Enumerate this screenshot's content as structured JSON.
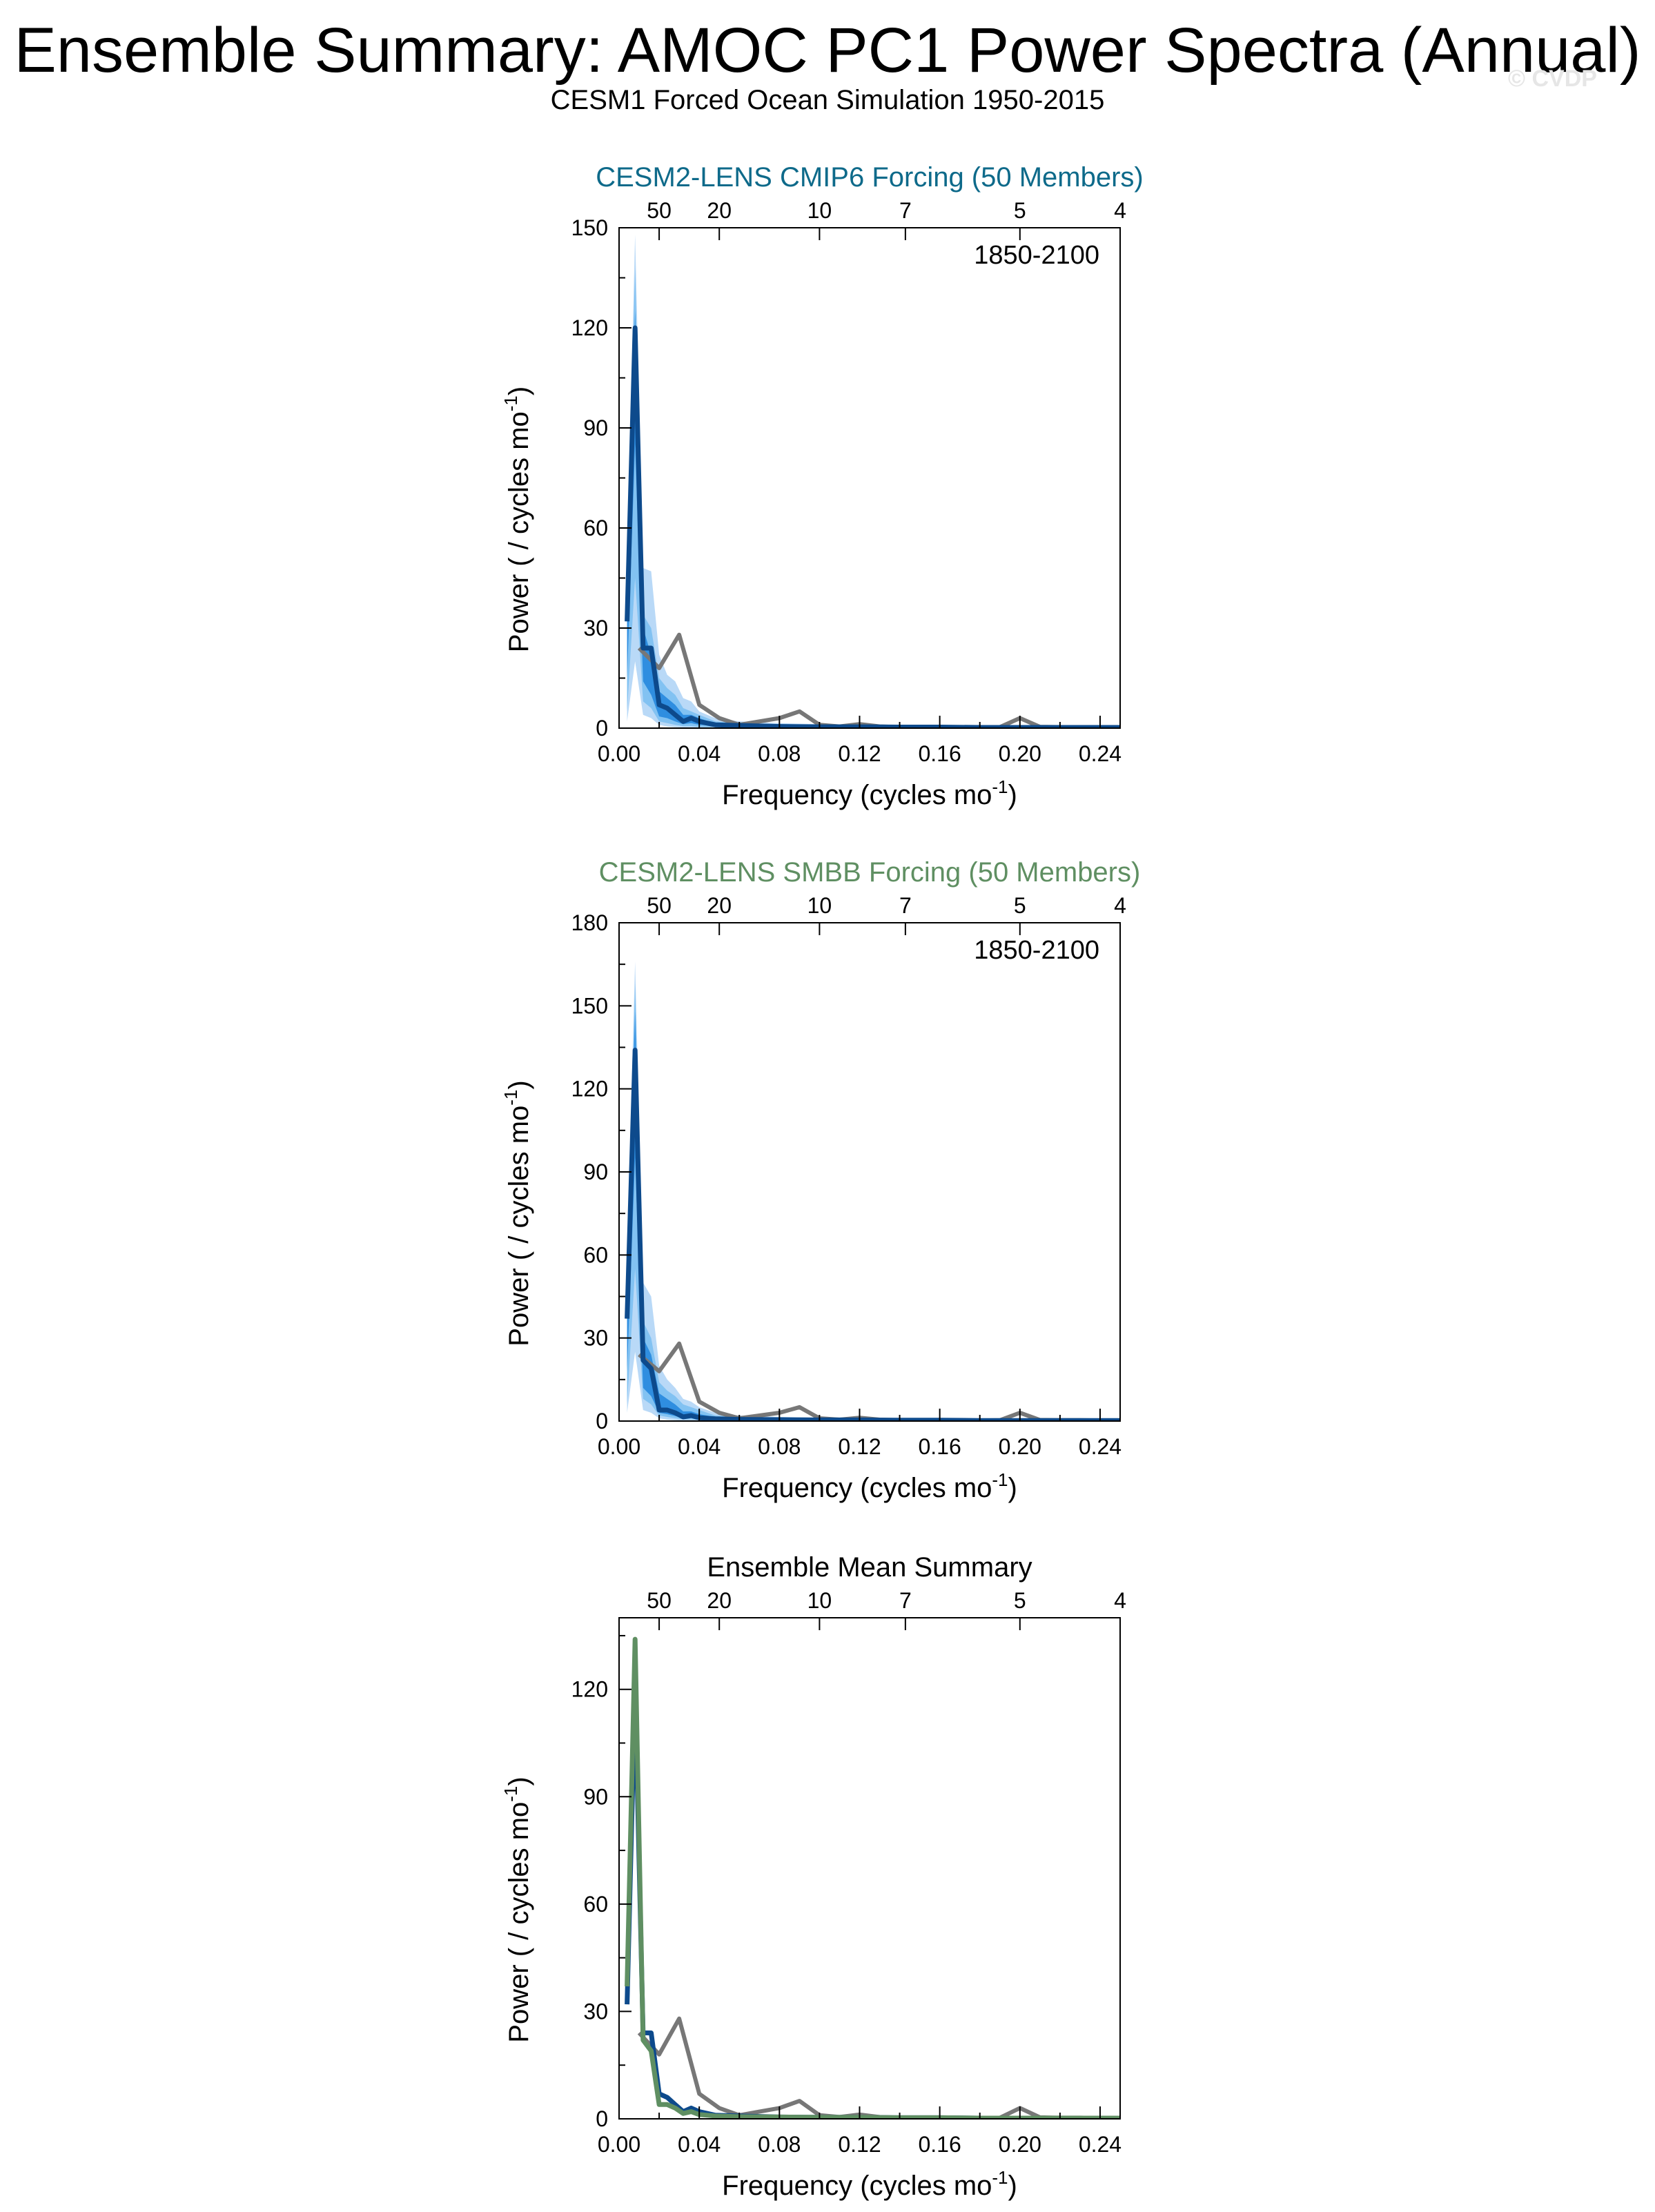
{
  "title": "Ensemble Summary: AMOC PC1 Power Spectra (Annual)",
  "subtitle": "CESM1 Forced Ocean Simulation 1950-2015",
  "watermark": "© CVDP",
  "colors": {
    "observed": "#777777",
    "lens_mean": "#0d4a8c",
    "band_outer": "#b9d9f7",
    "band_mid": "#82c2f2",
    "band_inner": "#2f8ee0",
    "cmip6_title": "#0e6a8a",
    "smbb_title": "#5f8f62",
    "smbb_line": "#5f8f62"
  },
  "chart_data": [
    {
      "type": "line",
      "title": "CESM2-LENS CMIP6 Forcing (50 Members)",
      "title_color": "#0e6a8a",
      "annotation": "1850-2100",
      "xlabel": "Frequency (cycles mo",
      "xlabel_sup": "-1",
      "xlabel_end": ")",
      "ylabel": "Power ( / cycles mo",
      "ylabel_sup": "-1",
      "ylabel_end": ")",
      "xlim": [
        0,
        0.25
      ],
      "ylim": [
        0,
        150
      ],
      "x_ticks": [
        "0.00",
        "0.04",
        "0.08",
        "0.12",
        "0.16",
        "0.20",
        "0.24"
      ],
      "y_ticks": [
        "0",
        "30",
        "60",
        "90",
        "120",
        "150"
      ],
      "top_ticks": [
        "50",
        "20",
        "10",
        "7",
        "5",
        "4"
      ],
      "top_tick_periods": [
        50,
        20,
        10,
        7,
        5,
        4
      ],
      "series": [
        {
          "role": "observed",
          "x": [
            0.01,
            0.02,
            0.03,
            0.04,
            0.05,
            0.06,
            0.07,
            0.08,
            0.09,
            0.1,
            0.11,
            0.12,
            0.13,
            0.14,
            0.15,
            0.16,
            0.17,
            0.18,
            0.19,
            0.2,
            0.21,
            0.22,
            0.23,
            0.24,
            0.25
          ],
          "values": [
            24,
            18,
            28,
            7,
            3,
            1,
            2,
            3,
            5,
            1,
            0.5,
            1.2,
            0.5,
            0.3,
            0.3,
            0.2,
            0.2,
            0.2,
            0.3,
            3,
            0.4,
            0.3,
            0.3,
            0.2,
            0.1
          ]
        },
        {
          "role": "ensemble-mean",
          "x": [
            0.004,
            0.008,
            0.012,
            0.016,
            0.02,
            0.024,
            0.028,
            0.032,
            0.036,
            0.04,
            0.044,
            0.048,
            0.06,
            0.08,
            0.1,
            0.12,
            0.14,
            0.16,
            0.18,
            0.2,
            0.22,
            0.25
          ],
          "values": [
            32,
            120,
            24,
            24,
            7,
            6,
            4,
            2,
            3,
            2,
            1.5,
            1,
            0.8,
            0.5,
            0.4,
            0.4,
            0.3,
            0.3,
            0.2,
            0.2,
            0.2,
            0.2
          ]
        }
      ],
      "bands": [
        {
          "level": "outer",
          "x": [
            0.004,
            0.008,
            0.012,
            0.016,
            0.02,
            0.024,
            0.028,
            0.032,
            0.036,
            0.04,
            0.044,
            0.048,
            0.06,
            0.08,
            0.1,
            0.12,
            0.16,
            0.2,
            0.25
          ],
          "lower": [
            2,
            20,
            4,
            3,
            1,
            0.5,
            0.3,
            0.2,
            0.2,
            0.1,
            0.1,
            0.1,
            0.1,
            0.1,
            0.1,
            0.1,
            0.1,
            0.1,
            0.1
          ],
          "upper": [
            50,
            148,
            48,
            47,
            22,
            16,
            14,
            9,
            8,
            5,
            4,
            3,
            2,
            1.5,
            1.2,
            1,
            0.8,
            0.6,
            0.5
          ]
        },
        {
          "level": "mid",
          "x": [
            0.004,
            0.008,
            0.012,
            0.016,
            0.02,
            0.024,
            0.028,
            0.032,
            0.036,
            0.04,
            0.044,
            0.048,
            0.06,
            0.08,
            0.1,
            0.12,
            0.16,
            0.2,
            0.25
          ],
          "lower": [
            5,
            45,
            8,
            6,
            2,
            1.5,
            1,
            0.6,
            0.6,
            0.4,
            0.3,
            0.3,
            0.2,
            0.2,
            0.2,
            0.2,
            0.2,
            0.1,
            0.1
          ],
          "upper": [
            45,
            138,
            34,
            30,
            15,
            12,
            10,
            6,
            5,
            4,
            3,
            2,
            1.5,
            1.2,
            1,
            0.8,
            0.6,
            0.5,
            0.4
          ]
        },
        {
          "level": "inner",
          "x": [
            0.004,
            0.008,
            0.012,
            0.016,
            0.02,
            0.024,
            0.028,
            0.032,
            0.036,
            0.04,
            0.044,
            0.048,
            0.06,
            0.08,
            0.1,
            0.12,
            0.16,
            0.2,
            0.25
          ],
          "lower": [
            15,
            85,
            14,
            10,
            3.5,
            3,
            2,
            1.2,
            1.5,
            1,
            0.8,
            0.6,
            0.4,
            0.3,
            0.3,
            0.2,
            0.2,
            0.2,
            0.1
          ],
          "upper": [
            38,
            125,
            30,
            22,
            11,
            9,
            7,
            4,
            4,
            3,
            2.2,
            1.6,
            1.2,
            0.9,
            0.8,
            0.6,
            0.5,
            0.4,
            0.3
          ]
        }
      ]
    },
    {
      "type": "line",
      "title": "CESM2-LENS SMBB Forcing (50 Members)",
      "title_color": "#5f8f62",
      "annotation": "1850-2100",
      "xlabel": "Frequency (cycles mo",
      "xlabel_sup": "-1",
      "xlabel_end": ")",
      "ylabel": "Power ( / cycles mo",
      "ylabel_sup": "-1",
      "ylabel_end": ")",
      "xlim": [
        0,
        0.25
      ],
      "ylim": [
        0,
        180
      ],
      "x_ticks": [
        "0.00",
        "0.04",
        "0.08",
        "0.12",
        "0.16",
        "0.20",
        "0.24"
      ],
      "y_ticks": [
        "0",
        "30",
        "60",
        "90",
        "120",
        "150",
        "180"
      ],
      "top_ticks": [
        "50",
        "20",
        "10",
        "7",
        "5",
        "4"
      ],
      "top_tick_periods": [
        50,
        20,
        10,
        7,
        5,
        4
      ],
      "series": [
        {
          "role": "observed",
          "x": [
            0.01,
            0.02,
            0.03,
            0.04,
            0.05,
            0.06,
            0.07,
            0.08,
            0.09,
            0.1,
            0.11,
            0.12,
            0.13,
            0.14,
            0.15,
            0.16,
            0.17,
            0.18,
            0.19,
            0.2,
            0.21,
            0.22,
            0.23,
            0.24,
            0.25
          ],
          "values": [
            24,
            18,
            28,
            7,
            3,
            1,
            2,
            3,
            5,
            1,
            0.5,
            1.2,
            0.5,
            0.3,
            0.3,
            0.2,
            0.2,
            0.2,
            0.3,
            3,
            0.4,
            0.3,
            0.3,
            0.2,
            0.1
          ]
        },
        {
          "role": "ensemble-mean",
          "x": [
            0.004,
            0.008,
            0.012,
            0.016,
            0.02,
            0.024,
            0.028,
            0.032,
            0.036,
            0.04,
            0.044,
            0.048,
            0.06,
            0.08,
            0.1,
            0.12,
            0.14,
            0.16,
            0.18,
            0.2,
            0.22,
            0.25
          ],
          "values": [
            37,
            134,
            22,
            19,
            4,
            4,
            3,
            1.5,
            2,
            1.2,
            1,
            0.8,
            0.6,
            0.5,
            0.4,
            0.4,
            0.3,
            0.3,
            0.2,
            0.2,
            0.2,
            0.2
          ]
        }
      ],
      "bands": [
        {
          "level": "outer",
          "x": [
            0.004,
            0.008,
            0.012,
            0.016,
            0.02,
            0.024,
            0.028,
            0.032,
            0.036,
            0.04,
            0.044,
            0.048,
            0.06,
            0.08,
            0.1,
            0.12,
            0.16,
            0.2,
            0.25
          ],
          "lower": [
            3,
            25,
            4,
            3,
            1,
            0.5,
            0.3,
            0.2,
            0.2,
            0.1,
            0.1,
            0.1,
            0.1,
            0.1,
            0.1,
            0.1,
            0.1,
            0.1,
            0.1
          ],
          "upper": [
            60,
            166,
            50,
            45,
            20,
            15,
            12,
            8,
            7,
            5,
            4,
            3,
            2,
            1.5,
            1.2,
            1,
            0.8,
            0.6,
            0.5
          ]
        },
        {
          "level": "mid",
          "x": [
            0.004,
            0.008,
            0.012,
            0.016,
            0.02,
            0.024,
            0.028,
            0.032,
            0.036,
            0.04,
            0.044,
            0.048,
            0.06,
            0.08,
            0.1,
            0.12,
            0.16,
            0.2,
            0.25
          ],
          "lower": [
            6,
            55,
            8,
            6,
            2,
            1.5,
            1,
            0.6,
            0.6,
            0.4,
            0.3,
            0.3,
            0.2,
            0.2,
            0.2,
            0.2,
            0.2,
            0.1,
            0.1
          ],
          "upper": [
            52,
            158,
            36,
            30,
            14,
            11,
            9,
            6,
            5,
            4,
            3,
            2,
            1.5,
            1.2,
            1,
            0.8,
            0.6,
            0.5,
            0.4
          ]
        },
        {
          "level": "inner",
          "x": [
            0.004,
            0.008,
            0.012,
            0.016,
            0.02,
            0.024,
            0.028,
            0.032,
            0.036,
            0.04,
            0.044,
            0.048,
            0.06,
            0.08,
            0.1,
            0.12,
            0.16,
            0.2,
            0.25
          ],
          "lower": [
            18,
            95,
            12,
            9,
            3,
            2.5,
            1.8,
            1,
            1.2,
            0.8,
            0.6,
            0.5,
            0.4,
            0.3,
            0.3,
            0.2,
            0.2,
            0.2,
            0.1
          ],
          "upper": [
            45,
            148,
            30,
            24,
            10,
            8,
            6,
            3.5,
            3.5,
            2.5,
            2,
            1.5,
            1.2,
            0.9,
            0.8,
            0.6,
            0.5,
            0.4,
            0.3
          ]
        }
      ]
    },
    {
      "type": "line",
      "title": "Ensemble Mean Summary",
      "title_color": "#000000",
      "annotation": "",
      "xlabel": "Frequency (cycles mo",
      "xlabel_sup": "-1",
      "xlabel_end": ")",
      "ylabel": "Power ( / cycles mo",
      "ylabel_sup": "-1",
      "ylabel_end": ")",
      "xlim": [
        0,
        0.25
      ],
      "ylim": [
        0,
        140
      ],
      "x_ticks": [
        "0.00",
        "0.04",
        "0.08",
        "0.12",
        "0.16",
        "0.20",
        "0.24"
      ],
      "y_ticks": [
        "0",
        "30",
        "60",
        "90",
        "120"
      ],
      "top_ticks": [
        "50",
        "20",
        "10",
        "7",
        "5",
        "4"
      ],
      "top_tick_periods": [
        50,
        20,
        10,
        7,
        5,
        4
      ],
      "series": [
        {
          "role": "observed",
          "x": [
            0.01,
            0.02,
            0.03,
            0.04,
            0.05,
            0.06,
            0.07,
            0.08,
            0.09,
            0.1,
            0.11,
            0.12,
            0.13,
            0.14,
            0.15,
            0.16,
            0.17,
            0.18,
            0.19,
            0.2,
            0.21,
            0.22,
            0.23,
            0.24,
            0.25
          ],
          "values": [
            24,
            18,
            28,
            7,
            3,
            1,
            2,
            3,
            5,
            1,
            0.5,
            1.2,
            0.5,
            0.3,
            0.3,
            0.2,
            0.2,
            0.2,
            0.3,
            3,
            0.4,
            0.3,
            0.3,
            0.2,
            0.1
          ]
        },
        {
          "role": "cmip6-mean",
          "x": [
            0.004,
            0.008,
            0.012,
            0.016,
            0.02,
            0.024,
            0.028,
            0.032,
            0.036,
            0.04,
            0.044,
            0.048,
            0.06,
            0.08,
            0.1,
            0.12,
            0.14,
            0.16,
            0.18,
            0.2,
            0.22,
            0.25
          ],
          "values": [
            32,
            120,
            24,
            24,
            7,
            6,
            4,
            2,
            3,
            2,
            1.5,
            1,
            0.8,
            0.5,
            0.4,
            0.4,
            0.3,
            0.3,
            0.2,
            0.2,
            0.2,
            0.2
          ]
        },
        {
          "role": "smbb-mean",
          "x": [
            0.004,
            0.008,
            0.012,
            0.016,
            0.02,
            0.024,
            0.028,
            0.032,
            0.036,
            0.04,
            0.044,
            0.048,
            0.06,
            0.08,
            0.1,
            0.12,
            0.14,
            0.16,
            0.18,
            0.2,
            0.22,
            0.25
          ],
          "values": [
            37,
            134,
            22,
            19,
            4,
            4,
            3,
            1.5,
            2,
            1.2,
            1,
            0.8,
            0.6,
            0.5,
            0.4,
            0.4,
            0.3,
            0.3,
            0.2,
            0.2,
            0.2,
            0.2
          ]
        }
      ],
      "bands": []
    }
  ]
}
